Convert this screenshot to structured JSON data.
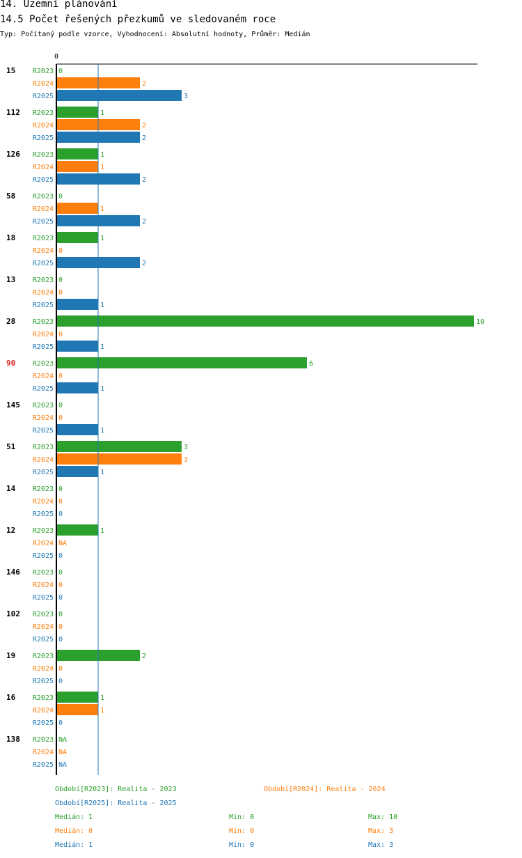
{
  "header": {
    "title": "14. Územní plánování",
    "subtitle": "14.5 Počet řešených přezkumů ve sledovaném roce",
    "meta": "Typ: Počítaný podle vzorce, Vyhodnocení: Absolutní hodnoty, Průměr: Medián"
  },
  "colors": {
    "R2023": "#2ca02c",
    "R2024": "#ff7f0e",
    "R2025": "#1f77b4",
    "highlight": "#d62728",
    "median_line": "#1f77b4"
  },
  "chart_data": {
    "type": "bar",
    "orientation": "horizontal",
    "xlim": [
      0,
      10
    ],
    "x_tick_labels": [
      "0"
    ],
    "median_reference": 1,
    "highlighted_category": "90",
    "categories": [
      "15",
      "112",
      "126",
      "58",
      "18",
      "13",
      "28",
      "90",
      "145",
      "51",
      "14",
      "12",
      "146",
      "102",
      "19",
      "16",
      "138"
    ],
    "series": [
      {
        "name": "R2023",
        "values": [
          0,
          1,
          1,
          0,
          1,
          0,
          10,
          6,
          0,
          3,
          0,
          1,
          0,
          0,
          2,
          1,
          null
        ]
      },
      {
        "name": "R2024",
        "values": [
          2,
          2,
          1,
          1,
          0,
          0,
          0,
          0,
          0,
          3,
          0,
          null,
          0,
          0,
          0,
          1,
          null
        ]
      },
      {
        "name": "R2025",
        "values": [
          3,
          2,
          2,
          2,
          2,
          1,
          1,
          1,
          1,
          1,
          0,
          0,
          0,
          0,
          0,
          0,
          null
        ]
      }
    ],
    "na_label": "NA"
  },
  "legend": {
    "periods": [
      {
        "key": "R2023",
        "text": "Období[R2023]: Realita - 2023"
      },
      {
        "key": "R2024",
        "text": "Období[R2024]: Realita - 2024"
      },
      {
        "key": "R2025",
        "text": "Období[R2025]: Realita - 2025"
      }
    ],
    "stats": [
      {
        "key": "R2023",
        "median": "Medián: 1",
        "min": "Min: 0",
        "max": "Max: 10"
      },
      {
        "key": "R2024",
        "median": "Medián: 0",
        "min": "Min: 0",
        "max": "Max: 3"
      },
      {
        "key": "R2025",
        "median": "Medián: 1",
        "min": "Min: 0",
        "max": "Max: 3"
      }
    ]
  }
}
